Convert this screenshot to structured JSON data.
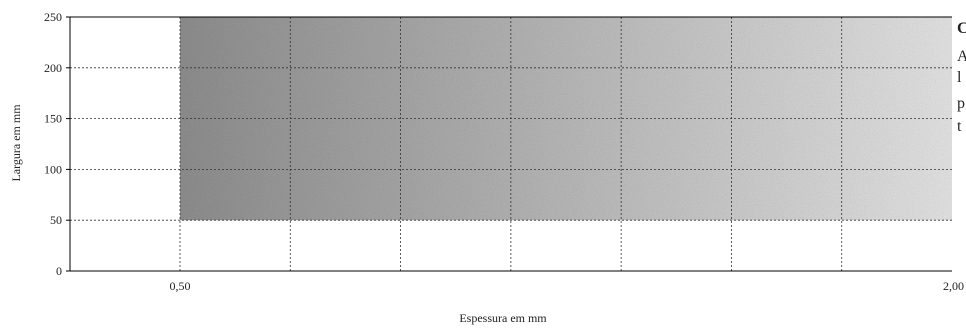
{
  "chart_data": {
    "type": "area",
    "title": "",
    "xlabel": "Espessura em mm",
    "ylabel": "Largura em mm",
    "x_tick_labels": [
      "0,50",
      "2,00"
    ],
    "y_tick_labels": [
      "0",
      "50",
      "100",
      "150",
      "200",
      "250"
    ],
    "y_ticks": [
      0,
      50,
      100,
      150,
      200,
      250
    ],
    "ylim": [
      0,
      250
    ],
    "xlim": [
      0.5,
      2.0
    ],
    "grid": true,
    "region": {
      "x_range": [
        0.5,
        2.0
      ],
      "y_range": [
        50,
        250
      ],
      "fill": "brushed-metal gray gradient"
    },
    "colors": {
      "region_dark": "#8e8e8e",
      "region_light": "#e4e4e4",
      "gridline": "#333333",
      "axis": "#000000"
    },
    "clipped_text_lines": [
      {
        "text": "C",
        "bold": true
      },
      {
        "text": "A",
        "bold": false
      },
      {
        "text": "l",
        "bold": false
      },
      {
        "text": "p",
        "bold": false
      },
      {
        "text": "t",
        "bold": false
      }
    ]
  }
}
